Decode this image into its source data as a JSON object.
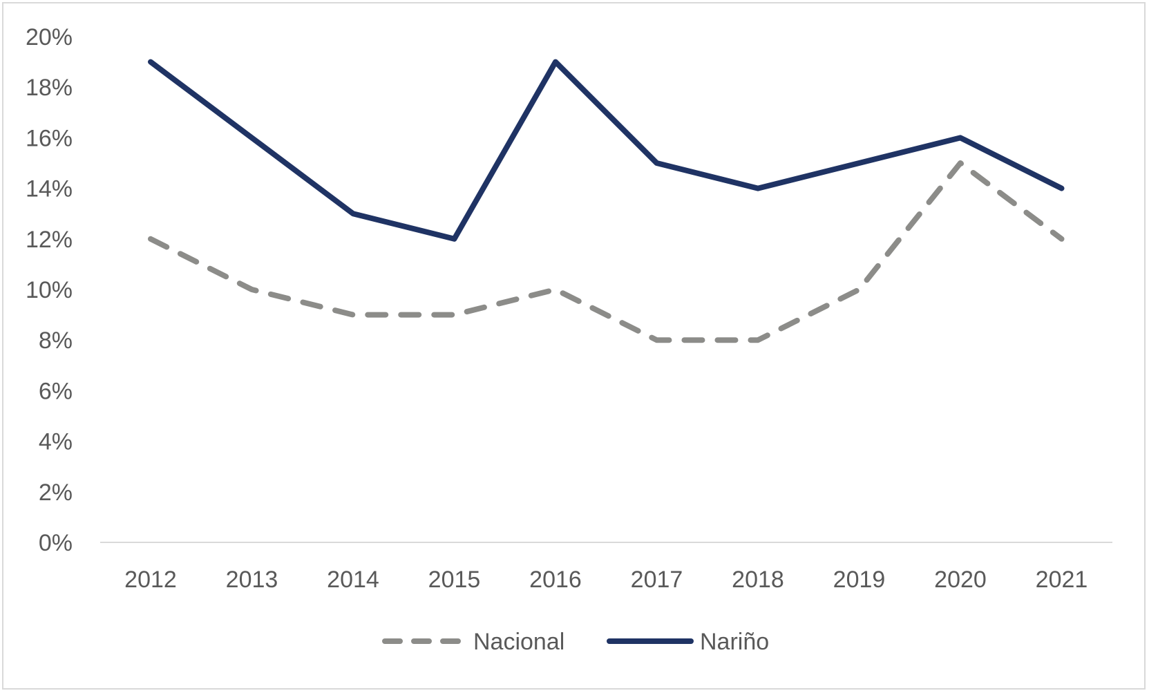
{
  "chart_data": {
    "type": "line",
    "categories": [
      "2012",
      "2013",
      "2014",
      "2015",
      "2016",
      "2017",
      "2018",
      "2019",
      "2020",
      "2021"
    ],
    "y_ticks": [
      "0%",
      "2%",
      "4%",
      "6%",
      "8%",
      "10%",
      "12%",
      "14%",
      "16%",
      "18%",
      "20%"
    ],
    "ylim": [
      0,
      20
    ],
    "y_unit": "%",
    "grid": false,
    "legend_position": "bottom",
    "series": [
      {
        "name": "Nacional",
        "values": [
          12,
          10,
          9,
          9,
          10,
          8,
          8,
          10,
          15,
          12
        ],
        "color": "#8c8c89",
        "style": "dashed"
      },
      {
        "name": "Nariño",
        "values": [
          19,
          16,
          13,
          12,
          19,
          15,
          14,
          15,
          16,
          14
        ],
        "color": "#1f3364",
        "style": "solid"
      }
    ]
  }
}
